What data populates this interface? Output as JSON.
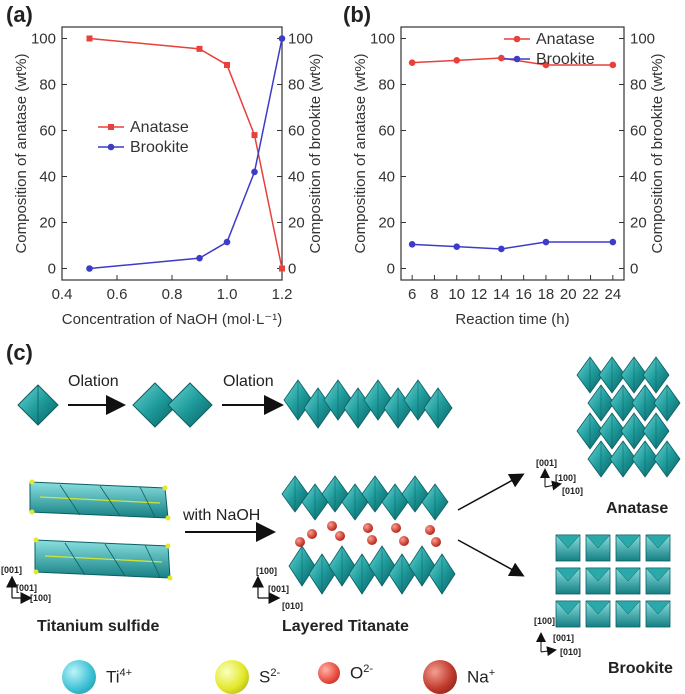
{
  "panels": {
    "a": "(a)",
    "b": "(b)",
    "c": "(c)"
  },
  "chart_data": [
    {
      "type": "line",
      "xlabel": "Concentration of NaOH (mol·L⁻¹)",
      "ylabel_left": "Composition of anatase (wt%)",
      "ylabel_right": "Composition of brookite (wt%)",
      "xlim": [
        0.4,
        1.2
      ],
      "ylim": [
        -5,
        105
      ],
      "x_ticks": [
        "0.4",
        "0.6",
        "0.8",
        "1.0",
        "1.2"
      ],
      "y_ticks": [
        "0",
        "20",
        "40",
        "60",
        "80",
        "100"
      ],
      "legend_position": "center-left",
      "series": [
        {
          "name": "Anatase",
          "color": "#e8403a",
          "marker": "square",
          "x": [
            0.5,
            0.9,
            1.0,
            1.1,
            1.2
          ],
          "y": [
            100,
            95.5,
            88.5,
            58,
            0
          ]
        },
        {
          "name": "Brookite",
          "color": "#3c3cc8",
          "marker": "circle",
          "x": [
            0.5,
            0.9,
            1.0,
            1.1,
            1.2
          ],
          "y": [
            0,
            4.5,
            11.5,
            42,
            100
          ]
        }
      ]
    },
    {
      "type": "line",
      "xlabel": "Reaction time (h)",
      "ylabel_left": "Composition of anatase (wt%)",
      "ylabel_right": "Composition of brookite (wt%)",
      "xlim": [
        5,
        25
      ],
      "ylim": [
        -5,
        105
      ],
      "x_ticks": [
        "6",
        "8",
        "10",
        "12",
        "14",
        "16",
        "18",
        "20",
        "22",
        "24"
      ],
      "y_ticks": [
        "0",
        "20",
        "40",
        "60",
        "80",
        "100"
      ],
      "legend_position": "top-right",
      "series": [
        {
          "name": "Anatase",
          "color": "#e8403a",
          "marker": "circle",
          "x": [
            6,
            10,
            14,
            18,
            24
          ],
          "y": [
            89.5,
            90.5,
            91.5,
            88.5,
            88.5
          ]
        },
        {
          "name": "Brookite",
          "color": "#3c3cc8",
          "marker": "circle",
          "x": [
            6,
            10,
            14,
            18,
            24
          ],
          "y": [
            10.5,
            9.5,
            8.5,
            11.5,
            11.5
          ]
        }
      ]
    }
  ],
  "scheme": {
    "olation_1": "Olation",
    "olation_2": "Olation",
    "with_naoh": "with NaOH",
    "titanium_sulfide": "Titanium sulfide",
    "layered_titanate": "Layered Titanate",
    "anatase": "Anatase",
    "brookite": "Brookite",
    "axes_ts_a": "[001]",
    "axes_ts_b": "[001]",
    "axes_ts_c": "[100]",
    "axes_lt_a": "[100]",
    "axes_lt_b": "[001]",
    "axes_lt_c": "[010]",
    "axes_an_a": "[001]",
    "axes_an_b": "[100]",
    "axes_an_c": "[010]",
    "axes_br_a": "[100]",
    "axes_br_b": "[001]",
    "axes_br_c": "[010]"
  },
  "legend": {
    "ti_base": "Ti",
    "ti_sup": "4+",
    "s_base": "S",
    "s_sup": "2-",
    "o_base": "O",
    "o_sup": "2-",
    "na_base": "Na",
    "na_sup": "+",
    "colors": {
      "ti": "#3fc3d6",
      "s": "#e3e82a",
      "o": "#e8473b",
      "na": "#c0392b"
    }
  }
}
